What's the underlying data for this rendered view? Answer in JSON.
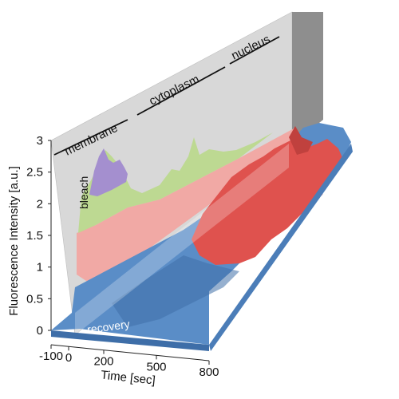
{
  "chart_data": {
    "type": "area",
    "style": "3d-surface",
    "ylabel": "Fluorescence Intensity [a.u.]",
    "xlabel": "Time [sec]",
    "ylim": [
      0,
      3
    ],
    "xlim": [
      -100,
      800
    ],
    "y_ticks": [
      "0",
      "0.5",
      "1",
      "1.5",
      "2",
      "2.5",
      "3"
    ],
    "x_ticks": [
      "-100",
      "0",
      "200",
      "500",
      "800"
    ],
    "regions": [
      "membrane",
      "cytoplasm",
      "nucleus"
    ],
    "annotations": {
      "bleach": "bleach",
      "recovery": "recovery"
    },
    "colors": {
      "surface_blue": "#5b8fc9",
      "surface_blue_dark": "#3e6ea8",
      "surface_red": "#e0524e",
      "prebleach_red": "#f2a6a2",
      "prebleach_green": "#b8d88a",
      "prebleach_purple": "#a48fcf",
      "panel_gray": "#d7d7d7",
      "back_wall": "#8f8f8f"
    },
    "series": [
      {
        "name": "blue",
        "approx_level": [
          0.8,
          1.3
        ]
      },
      {
        "name": "red",
        "approx_level": [
          1.6,
          2.6
        ]
      }
    ]
  }
}
